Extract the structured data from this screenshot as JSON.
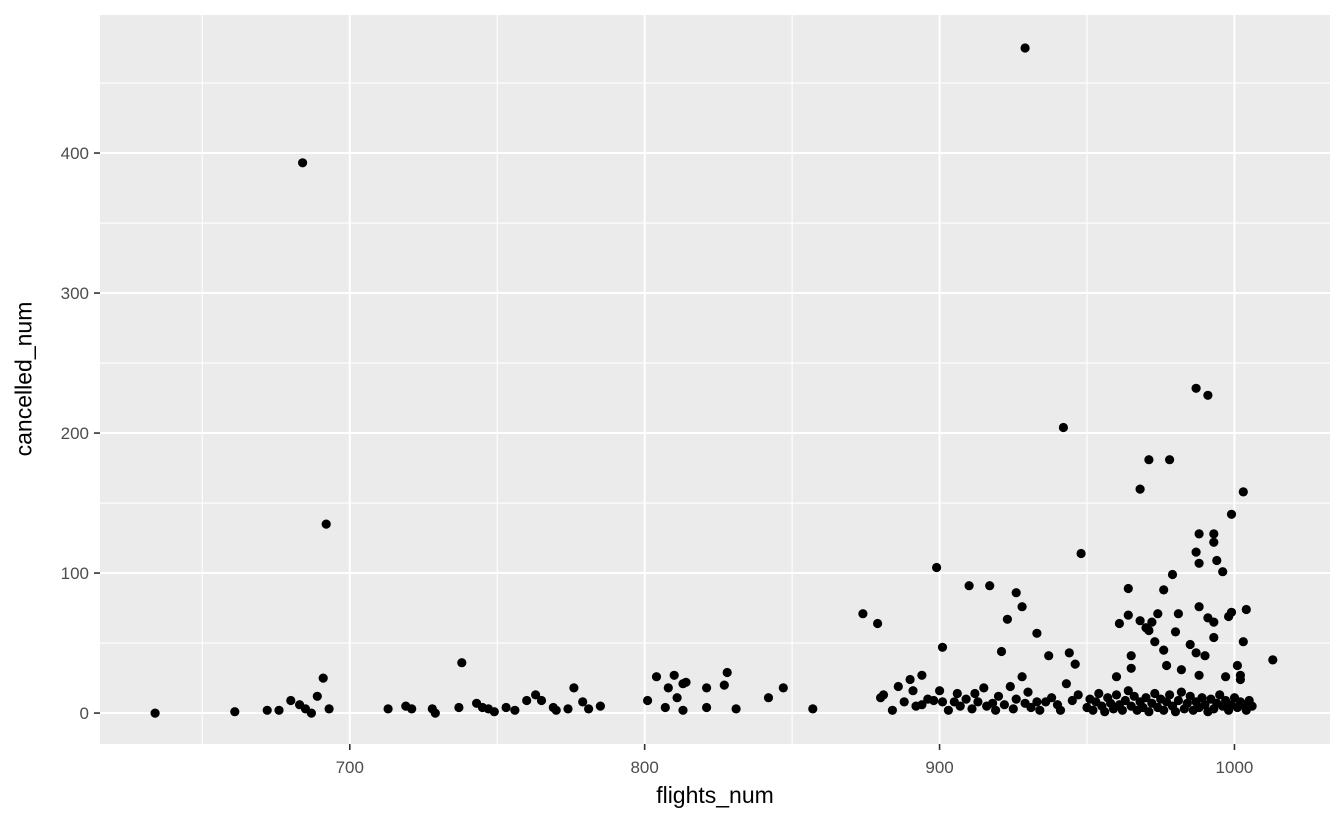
{
  "chart_data": {
    "type": "scatter",
    "title": "",
    "xlabel": "flights_num",
    "ylabel": "cancelled_num",
    "x_ticks": [
      700,
      800,
      900,
      1000
    ],
    "y_ticks": [
      0,
      100,
      200,
      300,
      400
    ],
    "x_minor_gridlines": [
      650,
      750,
      850,
      950
    ],
    "y_minor_gridlines": [
      50,
      150,
      250,
      350,
      450
    ],
    "xlim": [
      615.3,
      1032.4
    ],
    "ylim": [
      -22.1,
      498.6
    ],
    "grid": true,
    "legend": false,
    "theme": {
      "panel_bg": "#EBEBEB",
      "grid_color": "#FFFFFF",
      "point_color": "#000000",
      "tick_label_color": "#4D4D4D",
      "tick_mark_color": "#333333",
      "axis_title_color": "#000000"
    },
    "points": [
      [
        634,
        0
      ],
      [
        661,
        1
      ],
      [
        672,
        2
      ],
      [
        676,
        2
      ],
      [
        680,
        9
      ],
      [
        683,
        6
      ],
      [
        684,
        393
      ],
      [
        685,
        3
      ],
      [
        687,
        0
      ],
      [
        689,
        12
      ],
      [
        691,
        25
      ],
      [
        692,
        135
      ],
      [
        693,
        3
      ],
      [
        713,
        3
      ],
      [
        719,
        5
      ],
      [
        721,
        3
      ],
      [
        728,
        3
      ],
      [
        729,
        0
      ],
      [
        737,
        4
      ],
      [
        738,
        36
      ],
      [
        743,
        7
      ],
      [
        745,
        4
      ],
      [
        747,
        3
      ],
      [
        749,
        1
      ],
      [
        753,
        4
      ],
      [
        756,
        2
      ],
      [
        760,
        9
      ],
      [
        763,
        13
      ],
      [
        765,
        9
      ],
      [
        769,
        4
      ],
      [
        770,
        2
      ],
      [
        774,
        3
      ],
      [
        776,
        18
      ],
      [
        779,
        8
      ],
      [
        781,
        3
      ],
      [
        785,
        5
      ],
      [
        801,
        9
      ],
      [
        804,
        26
      ],
      [
        807,
        4
      ],
      [
        808,
        18
      ],
      [
        810,
        27
      ],
      [
        811,
        11
      ],
      [
        813,
        2
      ],
      [
        813,
        21
      ],
      [
        814,
        22
      ],
      [
        821,
        4
      ],
      [
        821,
        18
      ],
      [
        827,
        20
      ],
      [
        828,
        29
      ],
      [
        831,
        3
      ],
      [
        842,
        11
      ],
      [
        847,
        18
      ],
      [
        857,
        3
      ],
      [
        874,
        71
      ],
      [
        879,
        64
      ],
      [
        880,
        11
      ],
      [
        881,
        13
      ],
      [
        884,
        2
      ],
      [
        886,
        19
      ],
      [
        888,
        8
      ],
      [
        890,
        24
      ],
      [
        891,
        16
      ],
      [
        892,
        5
      ],
      [
        894,
        27
      ],
      [
        894,
        6
      ],
      [
        896,
        10
      ],
      [
        898,
        9
      ],
      [
        899,
        104
      ],
      [
        900,
        16
      ],
      [
        901,
        47
      ],
      [
        901,
        8
      ],
      [
        903,
        2
      ],
      [
        905,
        8
      ],
      [
        906,
        14
      ],
      [
        907,
        5
      ],
      [
        909,
        10
      ],
      [
        910,
        91
      ],
      [
        911,
        3
      ],
      [
        912,
        14
      ],
      [
        913,
        8
      ],
      [
        915,
        18
      ],
      [
        916,
        5
      ],
      [
        917,
        91
      ],
      [
        918,
        7
      ],
      [
        919,
        2
      ],
      [
        920,
        12
      ],
      [
        921,
        44
      ],
      [
        922,
        6
      ],
      [
        923,
        67
      ],
      [
        924,
        19
      ],
      [
        925,
        3
      ],
      [
        926,
        86
      ],
      [
        926,
        10
      ],
      [
        928,
        76
      ],
      [
        928,
        26
      ],
      [
        929,
        475
      ],
      [
        929,
        7
      ],
      [
        930,
        15
      ],
      [
        931,
        4
      ],
      [
        933,
        57
      ],
      [
        933,
        8
      ],
      [
        934,
        2
      ],
      [
        936,
        8
      ],
      [
        937,
        41
      ],
      [
        938,
        11
      ],
      [
        940,
        6
      ],
      [
        941,
        2
      ],
      [
        942,
        204
      ],
      [
        943,
        21
      ],
      [
        944,
        43
      ],
      [
        945,
        9
      ],
      [
        946,
        35
      ],
      [
        947,
        13
      ],
      [
        948,
        114
      ],
      [
        950,
        4
      ],
      [
        951,
        10
      ],
      [
        952,
        2
      ],
      [
        953,
        8
      ],
      [
        954,
        14
      ],
      [
        955,
        5
      ],
      [
        956,
        1
      ],
      [
        957,
        11
      ],
      [
        958,
        7
      ],
      [
        959,
        3
      ],
      [
        960,
        26
      ],
      [
        960,
        13
      ],
      [
        961,
        64
      ],
      [
        961,
        6
      ],
      [
        962,
        2
      ],
      [
        963,
        9
      ],
      [
        964,
        89
      ],
      [
        964,
        70
      ],
      [
        964,
        16
      ],
      [
        965,
        41
      ],
      [
        965,
        32
      ],
      [
        965,
        5
      ],
      [
        966,
        12
      ],
      [
        967,
        2
      ],
      [
        968,
        160
      ],
      [
        968,
        66
      ],
      [
        968,
        8
      ],
      [
        969,
        4
      ],
      [
        970,
        61
      ],
      [
        970,
        11
      ],
      [
        971,
        181
      ],
      [
        971,
        59
      ],
      [
        971,
        1
      ],
      [
        972,
        65
      ],
      [
        972,
        7
      ],
      [
        973,
        51
      ],
      [
        973,
        14
      ],
      [
        974,
        71
      ],
      [
        974,
        4
      ],
      [
        975,
        10
      ],
      [
        976,
        88
      ],
      [
        976,
        45
      ],
      [
        976,
        2
      ],
      [
        977,
        34
      ],
      [
        977,
        8
      ],
      [
        978,
        181
      ],
      [
        978,
        13
      ],
      [
        979,
        99
      ],
      [
        979,
        5
      ],
      [
        980,
        58
      ],
      [
        980,
        1
      ],
      [
        981,
        71
      ],
      [
        981,
        9
      ],
      [
        982,
        31
      ],
      [
        982,
        15
      ],
      [
        983,
        3
      ],
      [
        984,
        7
      ],
      [
        985,
        49
      ],
      [
        985,
        12
      ],
      [
        986,
        2
      ],
      [
        987,
        232
      ],
      [
        987,
        115
      ],
      [
        987,
        43
      ],
      [
        987,
        8
      ],
      [
        988,
        128
      ],
      [
        988,
        107
      ],
      [
        988,
        76
      ],
      [
        988,
        27
      ],
      [
        988,
        4
      ],
      [
        989,
        11
      ],
      [
        990,
        41
      ],
      [
        990,
        6
      ],
      [
        991,
        227
      ],
      [
        991,
        68
      ],
      [
        991,
        1
      ],
      [
        992,
        10
      ],
      [
        993,
        128
      ],
      [
        993,
        122
      ],
      [
        993,
        65
      ],
      [
        993,
        54
      ],
      [
        993,
        3
      ],
      [
        994,
        109
      ],
      [
        994,
        7
      ],
      [
        995,
        13
      ],
      [
        996,
        101
      ],
      [
        996,
        5
      ],
      [
        997,
        26
      ],
      [
        997,
        9
      ],
      [
        998,
        69
      ],
      [
        998,
        2
      ],
      [
        999,
        142
      ],
      [
        999,
        72
      ],
      [
        999,
        6
      ],
      [
        1000,
        11
      ],
      [
        1001,
        34
      ],
      [
        1001,
        4
      ],
      [
        1002,
        27
      ],
      [
        1002,
        24
      ],
      [
        1002,
        8
      ],
      [
        1003,
        158
      ],
      [
        1003,
        51
      ],
      [
        1003,
        6
      ],
      [
        1004,
        74
      ],
      [
        1004,
        2
      ],
      [
        1005,
        9
      ],
      [
        1006,
        5
      ],
      [
        1013,
        38
      ]
    ]
  }
}
